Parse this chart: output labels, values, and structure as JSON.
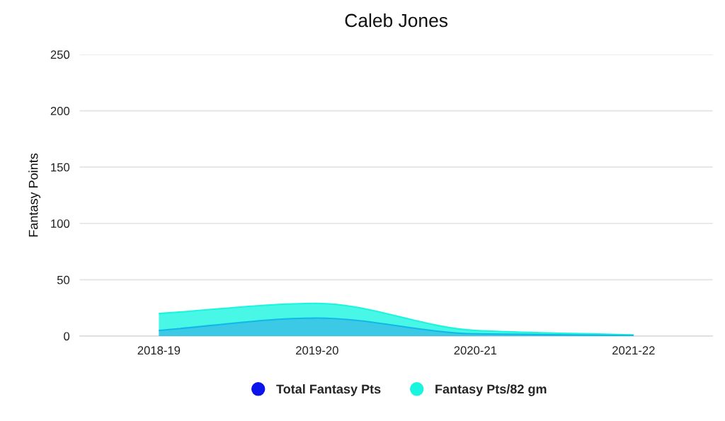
{
  "chart_data": {
    "type": "area",
    "title": "Caleb Jones",
    "ylabel": "Fantasy Points",
    "categories": [
      "2018-19",
      "2019-20",
      "2020-21",
      "2021-22"
    ],
    "series": [
      {
        "name": "Total Fantasy Pts",
        "color": "#0b14ea",
        "values": [
          5,
          16,
          2,
          0.5
        ]
      },
      {
        "name": "Fantasy Pts/82 gm",
        "color": "#1af5df",
        "values": [
          20,
          29,
          5,
          1
        ]
      }
    ],
    "ylim": [
      0,
      250
    ],
    "yticks": [
      0,
      50,
      100,
      150,
      200,
      250
    ],
    "grid": "y",
    "legend": "bottom",
    "marker": "none",
    "line_style": "solid"
  }
}
